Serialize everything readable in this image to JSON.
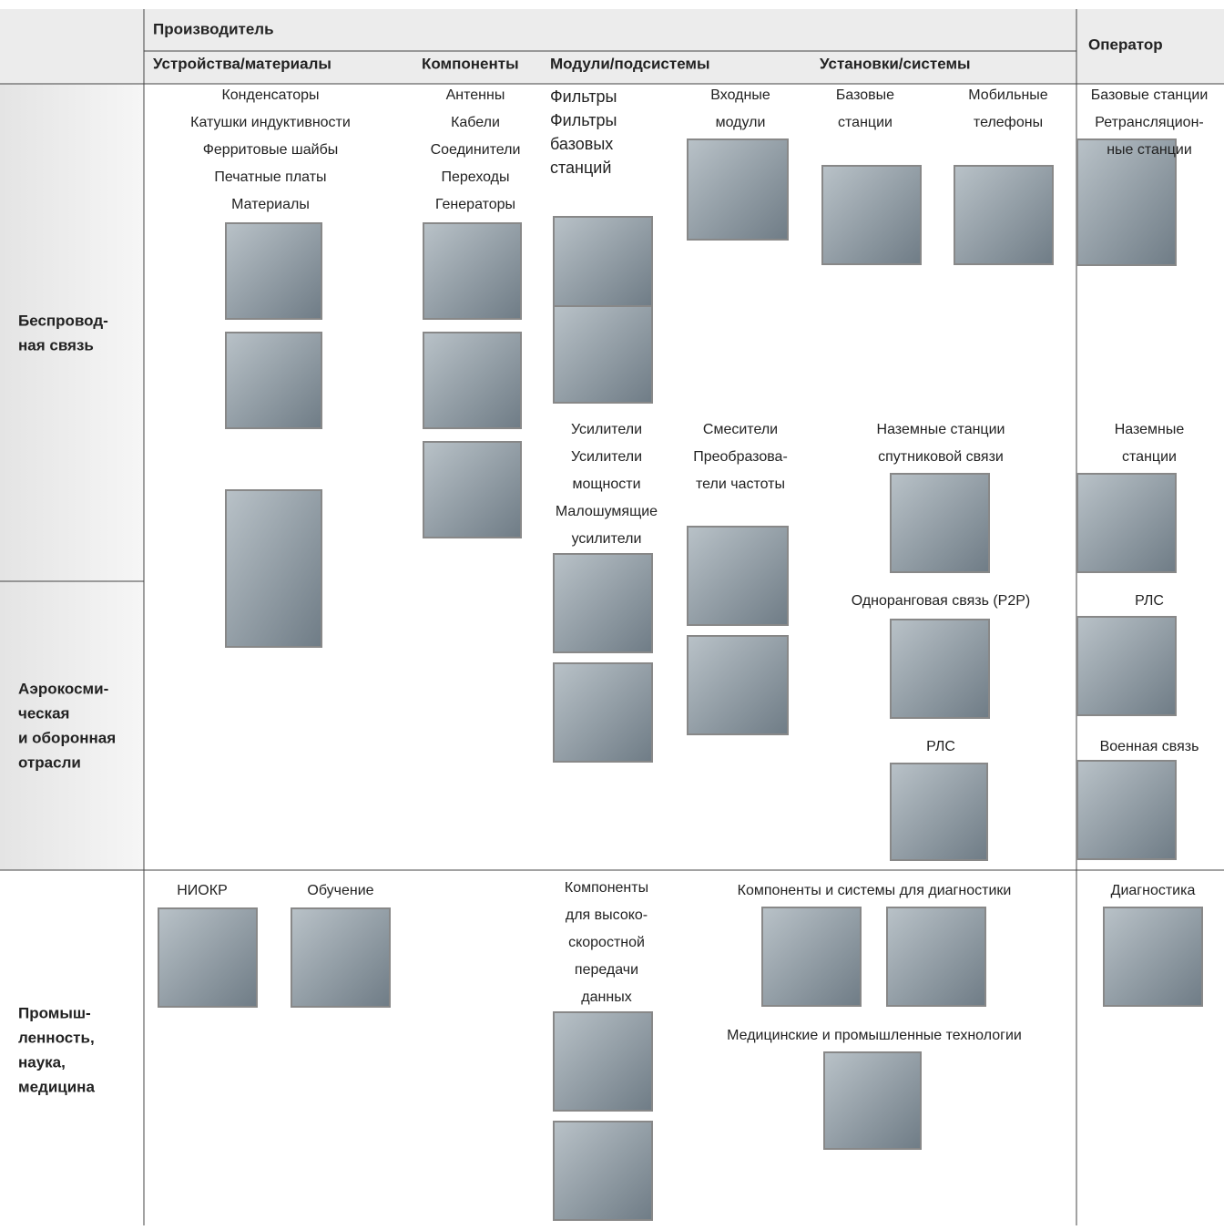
{
  "header": {
    "producer": "Производитель",
    "operator": "Оператор",
    "columns": [
      "Устройства/материалы",
      "Компоненты",
      "Модули/подсистемы",
      "Установки/системы"
    ]
  },
  "rows": [
    {
      "lines": [
        "Беспровод-",
        "ная связь"
      ]
    },
    {
      "lines": [
        "Аэрокосми-",
        "ческая",
        "и оборонная",
        "отрасли"
      ]
    },
    {
      "lines": [
        "Промыш-",
        "ленность,",
        "наука,",
        "медицина"
      ]
    }
  ],
  "labels": [
    {
      "lines": [
        "Конденсаторы",
        "Катушки индуктивности",
        "Ферритовые шайбы",
        "Печатные платы",
        "Материалы"
      ]
    },
    {
      "lines": [
        "Антенны",
        "Кабели",
        "Соединители",
        "Переходы",
        "Генераторы"
      ]
    },
    {
      "lines": [
        "Фильтры",
        "Фильтры",
        "базовых",
        "станций"
      ]
    },
    {
      "lines": [
        "Входные",
        "модули"
      ]
    },
    {
      "lines": [
        "Базовые",
        "станции"
      ]
    },
    {
      "lines": [
        "Мобильные",
        "телефоны"
      ]
    },
    {
      "lines": [
        "Базовые станции",
        "Ретрансляцион-",
        "ные станции"
      ]
    },
    {
      "lines": [
        "Усилители",
        "Усилители",
        "мощности",
        "Малошумящие",
        "усилители"
      ]
    },
    {
      "lines": [
        "Смесители",
        "Преобразова-",
        "тели частоты"
      ]
    },
    {
      "lines": [
        "Наземные станции",
        "спутниковой связи"
      ]
    },
    {
      "lines": [
        "Наземные",
        "станции"
      ]
    },
    {
      "lines": [
        "Одноранговая связь (P2P)"
      ]
    },
    {
      "lines": [
        "РЛС"
      ]
    },
    {
      "lines": [
        "РЛС"
      ]
    },
    {
      "lines": [
        "Военная связь"
      ]
    },
    {
      "lines": [
        "НИОКР"
      ]
    },
    {
      "lines": [
        "Обучение"
      ]
    },
    {
      "lines": [
        "Компоненты",
        "для высоко-",
        "скоростной",
        "передачи",
        "данных"
      ]
    },
    {
      "lines": [
        "Компоненты и системы для диагностики"
      ]
    },
    {
      "lines": [
        "Диагностика"
      ]
    },
    {
      "lines": [
        "Медицинские и промышленные технологии"
      ]
    }
  ]
}
